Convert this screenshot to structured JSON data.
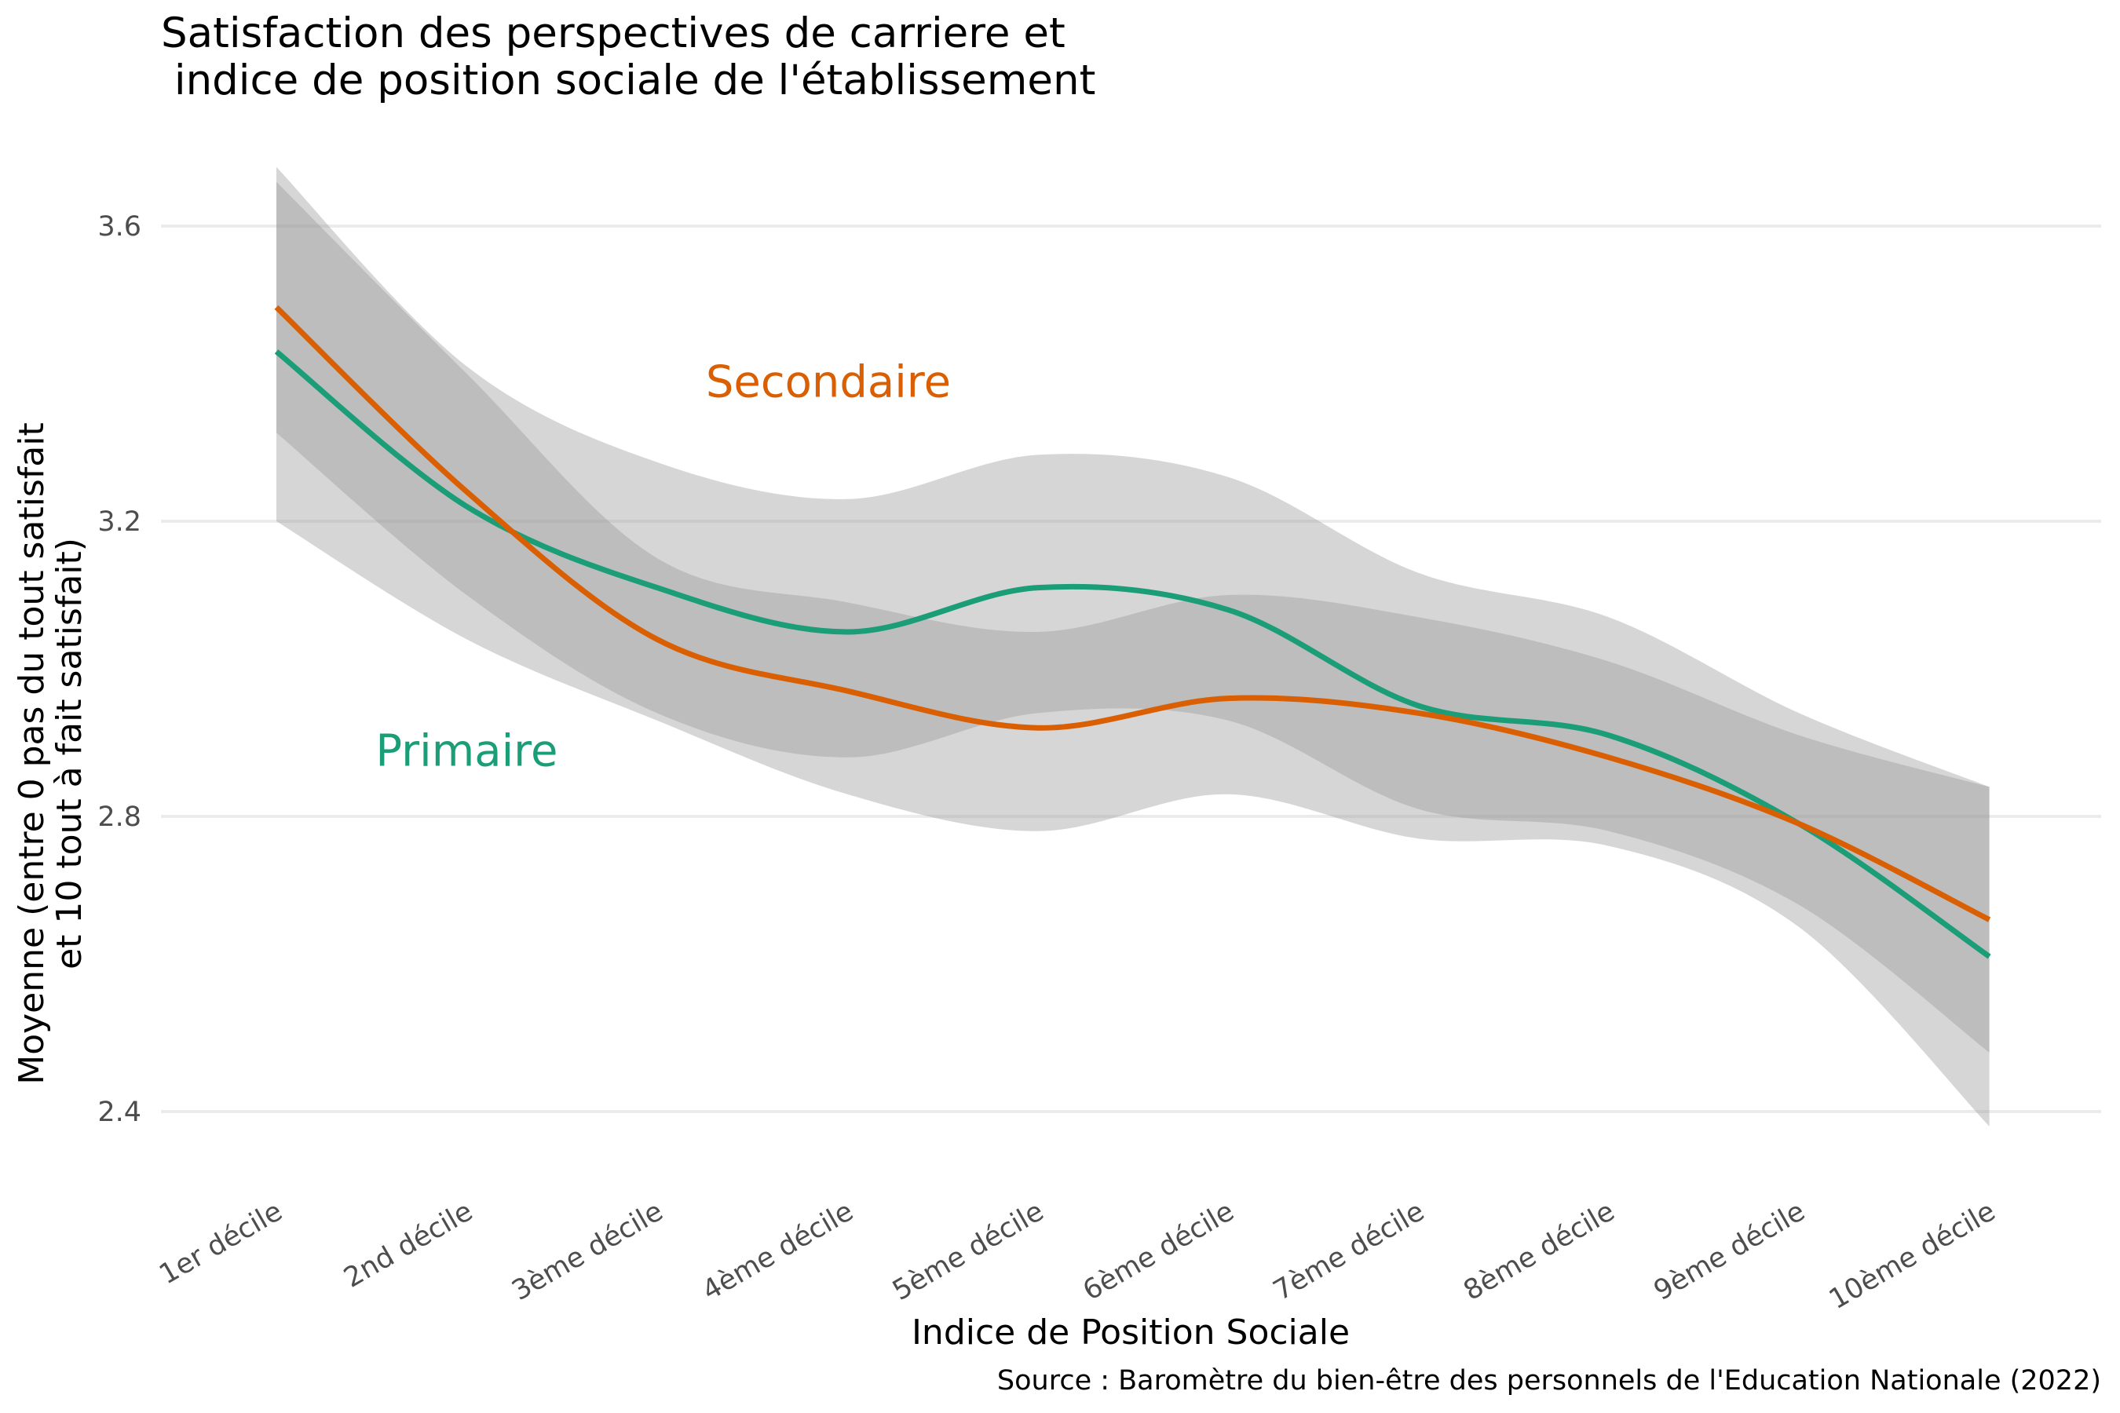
{
  "chart_data": {
    "type": "line",
    "title_lines": [
      "Satisfaction des perspectives de carriere et",
      " indice de position sociale de l'établissement"
    ],
    "xlabel": "Indice de Position Sociale",
    "ylabel_lines": [
      "Moyenne (entre 0 pas du tout satisfait",
      "et 10 tout à fait satisfait)"
    ],
    "caption": "Source : Baromètre du bien-être des personnels de l'Education Nationale (2022)",
    "categories": [
      "1er décile",
      "2nd décile",
      "3ème décile",
      "4ème décile",
      "5ème décile",
      "6ème décile",
      "7ème décile",
      "8ème décile",
      "9ème décile",
      "10ème décile"
    ],
    "ylim": [
      2.3,
      3.7
    ],
    "yticks": [
      2.4,
      2.8,
      3.2,
      3.6
    ],
    "ytick_labels": [
      "2.4",
      "2.8",
      "3.2",
      "3.6"
    ],
    "grid": true,
    "legend": "none (direct labels)",
    "series": [
      {
        "name": "Primaire",
        "color": "#1b9e77",
        "values": [
          3.43,
          3.22,
          3.11,
          3.05,
          3.11,
          3.08,
          2.95,
          2.91,
          2.79,
          2.61
        ],
        "ci_low": [
          3.2,
          3.04,
          2.93,
          2.83,
          2.78,
          2.83,
          2.77,
          2.76,
          2.65,
          2.38
        ],
        "ci_high": [
          3.68,
          3.41,
          3.28,
          3.23,
          3.29,
          3.26,
          3.13,
          3.07,
          2.94,
          2.84
        ]
      },
      {
        "name": "Secondaire",
        "color": "#d95f02",
        "values": [
          3.49,
          3.24,
          3.04,
          2.97,
          2.92,
          2.96,
          2.94,
          2.88,
          2.79,
          2.66
        ],
        "ci_low": [
          3.32,
          3.1,
          2.94,
          2.88,
          2.94,
          2.93,
          2.81,
          2.78,
          2.68,
          2.48
        ],
        "ci_high": [
          3.66,
          3.4,
          3.15,
          3.09,
          3.05,
          3.1,
          3.07,
          3.01,
          2.91,
          2.84
        ]
      }
    ],
    "annotations": [
      {
        "text": "Secondaire",
        "color": "#d95f02",
        "x": 3.9,
        "y": 3.39
      },
      {
        "text": "Primaire",
        "color": "#1b9e77",
        "x": 2.0,
        "y": 2.89
      }
    ],
    "ribbon_color": "#999999"
  }
}
